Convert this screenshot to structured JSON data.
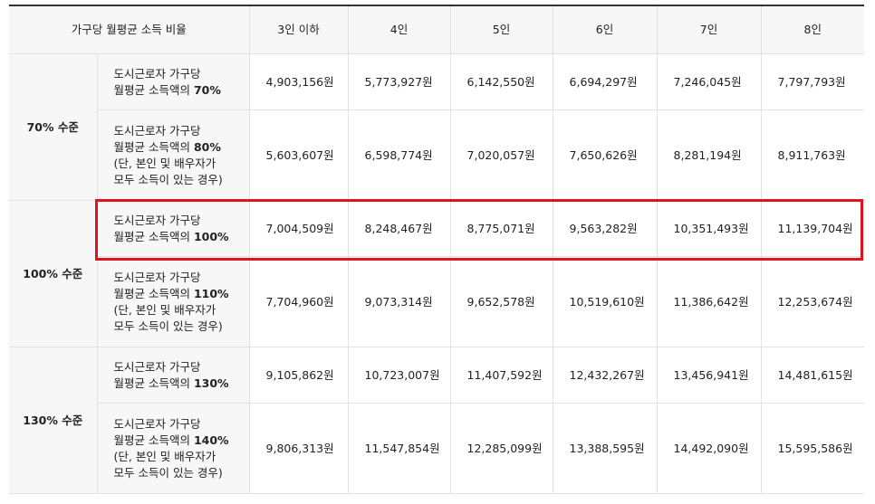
{
  "header": {
    "label": "가구당 월평균 소득 비율",
    "columns": [
      "3인 이하",
      "4인",
      "5인",
      "6인",
      "7인",
      "8인"
    ]
  },
  "groups": [
    {
      "level": "70% 수준",
      "rows": [
        {
          "desc": {
            "line1": "도시근로자 가구당",
            "line2_prefix": "월평균 소득액의 ",
            "pct": "70%",
            "note1": "",
            "note2": ""
          },
          "values": [
            "4,903,156원",
            "5,773,927원",
            "6,142,550원",
            "6,694,297원",
            "7,246,045원",
            "7,797,793원"
          ]
        },
        {
          "desc": {
            "line1": "도시근로자 가구당",
            "line2_prefix": "월평균 소득액의 ",
            "pct": "80%",
            "note1": "(단, 본인 및 배우자가",
            "note2": "모두 소득이 있는 경우)"
          },
          "values": [
            "5,603,607원",
            "6,598,774원",
            "7,020,057원",
            "7,650,626원",
            "8,281,194원",
            "8,911,763원"
          ]
        }
      ]
    },
    {
      "level": "100% 수준",
      "rows": [
        {
          "desc": {
            "line1": "도시근로자 가구당",
            "line2_prefix": "월평균 소득액의 ",
            "pct": "100%",
            "note1": "",
            "note2": ""
          },
          "values": [
            "7,004,509원",
            "8,248,467원",
            "8,775,071원",
            "9,563,282원",
            "10,351,493원",
            "11,139,704원"
          ]
        },
        {
          "desc": {
            "line1": "도시근로자 가구당",
            "line2_prefix": "월평균 소득액의 ",
            "pct": "110%",
            "note1": "(단, 본인 및 배우자가",
            "note2": "모두 소득이 있는 경우)"
          },
          "values": [
            "7,704,960원",
            "9,073,314원",
            "9,652,578원",
            "10,519,610원",
            "11,386,642원",
            "12,253,674원"
          ]
        }
      ]
    },
    {
      "level": "130% 수준",
      "rows": [
        {
          "desc": {
            "line1": "도시근로자 가구당",
            "line2_prefix": "월평균 소득액의 ",
            "pct": "130%",
            "note1": "",
            "note2": ""
          },
          "values": [
            "9,105,862원",
            "10,723,007원",
            "11,407,592원",
            "12,432,267원",
            "13,456,941원",
            "14,481,615원"
          ]
        },
        {
          "desc": {
            "line1": "도시근로자 가구당",
            "line2_prefix": "월평균 소득액의 ",
            "pct": "140%",
            "note1": "(단, 본인 및 배우자가",
            "note2": "모두 소득이 있는 경우)"
          },
          "values": [
            "9,806,313원",
            "11,547,854원",
            "12,285,099원",
            "13,388,595원",
            "14,492,090원",
            "15,595,586원"
          ]
        }
      ]
    }
  ],
  "highlight": {
    "color": "#e0141e"
  }
}
